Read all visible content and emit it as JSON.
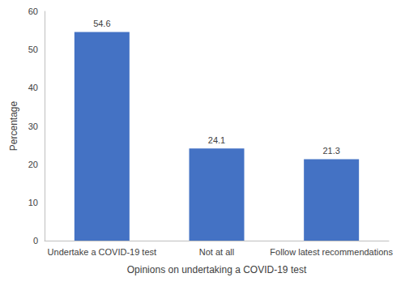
{
  "chart_data": {
    "type": "bar",
    "categories": [
      "Undertake a COVID-19 test",
      "Not at all",
      "Follow latest recommendations"
    ],
    "values": [
      54.6,
      24.1,
      21.3
    ],
    "color": "#4472c4",
    "xlabel": "Opinions on undertaking a COVID-19 test",
    "ylabel": "Percentage",
    "ylim": [
      0,
      60
    ],
    "yticks": [
      0,
      10,
      20,
      30,
      40,
      50,
      60
    ],
    "grid": false,
    "data_labels": true
  }
}
